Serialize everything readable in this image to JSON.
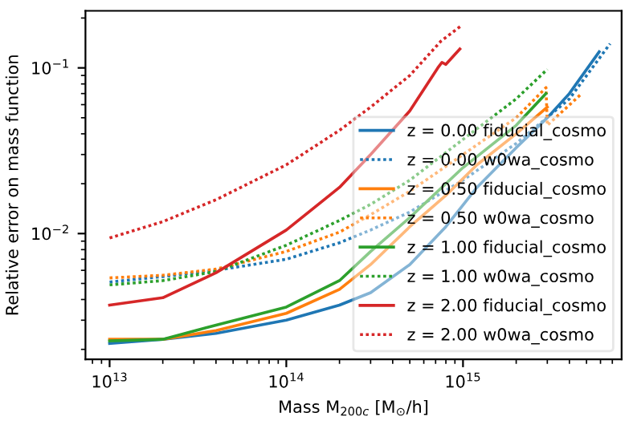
{
  "chart_data": {
    "type": "line",
    "xlabel": "Mass M$_{200c}$ [M$_{⊙}$/h]",
    "ylabel": "Relative error on mass function",
    "log": "xy",
    "xlim": [
      7300000000000.0,
      7900000000000000.0
    ],
    "ylim": [
      0.00174,
      0.221
    ],
    "xticks": [
      {
        "value": 10000000000000.0,
        "label": "10$^{13}$"
      },
      {
        "value": 100000000000000.0,
        "label": "10$^{14}$"
      },
      {
        "value": 1000000000000000.0,
        "label": "10$^{15}$"
      }
    ],
    "yticks": [
      {
        "value": 0.01,
        "label": "10$^{−2}$"
      },
      {
        "value": 0.1,
        "label": "10$^{−1}$"
      }
    ],
    "grid": false,
    "legend": "bottom right",
    "series": [
      {
        "name": "z = 0.00 fiducial_cosmo",
        "color": "#1f77b4",
        "line_style": "solid",
        "x": [
          10000000000000.0,
          20000000000000.0,
          40000000000000.0,
          100000000000000.0,
          200000000000000.0,
          300000000000000.0,
          500000000000000.0,
          800000000000000.0,
          1200000000000000.0,
          2000000000000000.0,
          3000000000000000.0,
          4000000000000000.0,
          5900000000000000.0
        ],
        "values": [
          0.00217,
          0.0023,
          0.0025,
          0.003,
          0.0037,
          0.0044,
          0.0065,
          0.011,
          0.019,
          0.033,
          0.05,
          0.07,
          0.125
        ]
      },
      {
        "name": "z = 0.00 w0wa_cosmo",
        "color": "#1f77b4",
        "line_style": "dotted",
        "x": [
          10000000000000.0,
          20000000000000.0,
          40000000000000.0,
          100000000000000.0,
          200000000000000.0,
          300000000000000.0,
          500000000000000.0,
          1000000000000000.0,
          2000000000000000.0,
          4000000000000000.0,
          6800000000000000.0
        ],
        "values": [
          0.0051,
          0.0055,
          0.006,
          0.007,
          0.0088,
          0.0105,
          0.0135,
          0.021,
          0.035,
          0.065,
          0.14
        ]
      },
      {
        "name": "z = 0.50 fiducial_cosmo",
        "color": "#ff7f0e",
        "line_style": "solid",
        "x": [
          10000000000000.0,
          20000000000000.0,
          40000000000000.0,
          100000000000000.0,
          200000000000000.0,
          300000000000000.0,
          500000000000000.0,
          800000000000000.0,
          1200000000000000.0,
          2000000000000000.0,
          3000000000000000.0
        ],
        "values": [
          0.0023,
          0.0023,
          0.0026,
          0.0033,
          0.0046,
          0.0065,
          0.011,
          0.017,
          0.026,
          0.04,
          0.058
        ]
      },
      {
        "name": "z = 0.50 w0wa_cosmo",
        "color": "#ff7f0e",
        "line_style": "dotted",
        "x": [
          10000000000000.0,
          20000000000000.0,
          40000000000000.0,
          100000000000000.0,
          200000000000000.0,
          300000000000000.0,
          500000000000000.0,
          1000000000000000.0,
          2000000000000000.0,
          2950000000000000.0,
          3000000000000000.0,
          4700000000000000.0
        ],
        "values": [
          0.0054,
          0.0056,
          0.0061,
          0.0078,
          0.0102,
          0.013,
          0.018,
          0.03,
          0.05,
          0.076,
          0.045,
          0.07
        ]
      },
      {
        "name": "z = 1.00 fiducial_cosmo",
        "color": "#2ca02c",
        "line_style": "solid",
        "x": [
          10000000000000.0,
          20000000000000.0,
          40000000000000.0,
          100000000000000.0,
          200000000000000.0,
          300000000000000.0,
          500000000000000.0,
          1000000000000000.0,
          2000000000000000.0,
          2950000000000000.0
        ],
        "values": [
          0.00225,
          0.0023,
          0.0028,
          0.0036,
          0.0052,
          0.0078,
          0.0125,
          0.025,
          0.045,
          0.07
        ]
      },
      {
        "name": "z = 1.00 w0wa_cosmo",
        "color": "#2ca02c",
        "line_style": "dotted",
        "x": [
          10000000000000.0,
          20000000000000.0,
          40000000000000.0,
          100000000000000.0,
          200000000000000.0,
          300000000000000.0,
          500000000000000.0,
          1000000000000000.0,
          2000000000000000.0,
          3000000000000000.0
        ],
        "values": [
          0.0049,
          0.0052,
          0.0059,
          0.0085,
          0.012,
          0.015,
          0.021,
          0.037,
          0.065,
          0.098
        ]
      },
      {
        "name": "z = 2.00 fiducial_cosmo",
        "color": "#d62728",
        "line_style": "solid",
        "x": [
          10000000000000.0,
          20000000000000.0,
          40000000000000.0,
          100000000000000.0,
          200000000000000.0,
          300000000000000.0,
          500000000000000.0,
          720000000000000.0,
          760000000000000.0,
          800000000000000.0,
          960000000000000.0
        ],
        "values": [
          0.0037,
          0.0041,
          0.0058,
          0.0105,
          0.019,
          0.03,
          0.055,
          0.1,
          0.108,
          0.105,
          0.13
        ]
      },
      {
        "name": "z = 2.00 w0wa_cosmo",
        "color": "#d62728",
        "line_style": "dotted",
        "x": [
          10000000000000.0,
          20000000000000.0,
          40000000000000.0,
          100000000000000.0,
          200000000000000.0,
          300000000000000.0,
          500000000000000.0,
          750000000000000.0,
          980000000000000.0
        ],
        "values": [
          0.0094,
          0.0118,
          0.016,
          0.026,
          0.042,
          0.058,
          0.09,
          0.145,
          0.18
        ]
      }
    ]
  }
}
